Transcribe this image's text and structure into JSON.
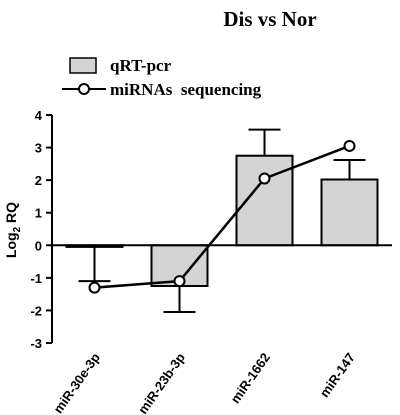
{
  "chart_data": {
    "type": "bar",
    "title": "Dis vs Nor",
    "ylabel_main": "Log",
    "ylabel_sub": "2",
    "ylabel_tail": " RQ",
    "ylim": [
      -3,
      4
    ],
    "yticks": [
      "4",
      "3",
      "2",
      "1",
      "0",
      "-1",
      "-2",
      "-3"
    ],
    "categories": [
      "miR-30e-3p",
      "miR-23b-3p",
      "miR-1662",
      "miR-147"
    ],
    "series": [
      {
        "name": "qRT-pcr",
        "kind": "bar",
        "values": [
          -0.05,
          -1.25,
          2.75,
          2.02
        ],
        "error": [
          1.05,
          0.8,
          0.8,
          0.6
        ]
      },
      {
        "name": "miRNAs  sequencing",
        "kind": "line",
        "values": [
          -1.3,
          -1.1,
          2.05,
          3.05
        ]
      }
    ],
    "legend_position": "top-left",
    "grid": false,
    "colors": {
      "bar_fill": "#d4d4d4",
      "stroke": "#000000",
      "marker_fill": "#ffffff"
    }
  }
}
